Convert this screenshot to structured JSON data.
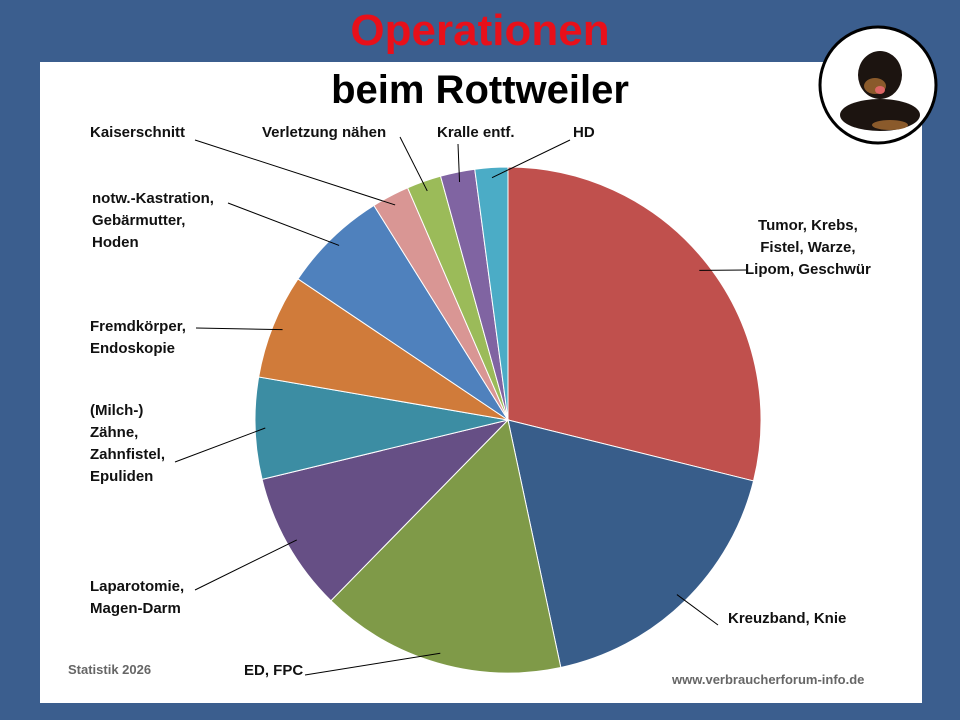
{
  "chart_data": {
    "type": "pie",
    "title": "Operationen",
    "subtitle": "beim Rottweiler",
    "categories": [
      "Tumor, Krebs,\nFistel, Warze,\nLipom, Geschwür",
      "Kreuzband, Knie",
      "ED, FPC",
      "Laparotomie,\nMagen-Darm",
      "(Milch-)\nZähne,\nZahnfistel,\nEpuliden",
      "Fremdkörper,\nEndoskopie",
      "notw.-Kastration,\nGebärmutter,\nHoden",
      "Kaiserschnitt",
      "Verletzung nähen",
      "Kralle entf.",
      "HD"
    ],
    "values": [
      28.9,
      17.8,
      15.7,
      8.9,
      6.5,
      6.7,
      6.7,
      2.4,
      2.2,
      2.2,
      2.1
    ],
    "colors": [
      "#c0504d",
      "#385d8a",
      "#7f9a48",
      "#664f85",
      "#3c8da3",
      "#d07b3a",
      "#4f81bd",
      "#d99694",
      "#9bbb59",
      "#8064a2",
      "#4bacc6"
    ],
    "source": "Statistik 2026",
    "website": "www.verbraucherforum-info.de"
  }
}
